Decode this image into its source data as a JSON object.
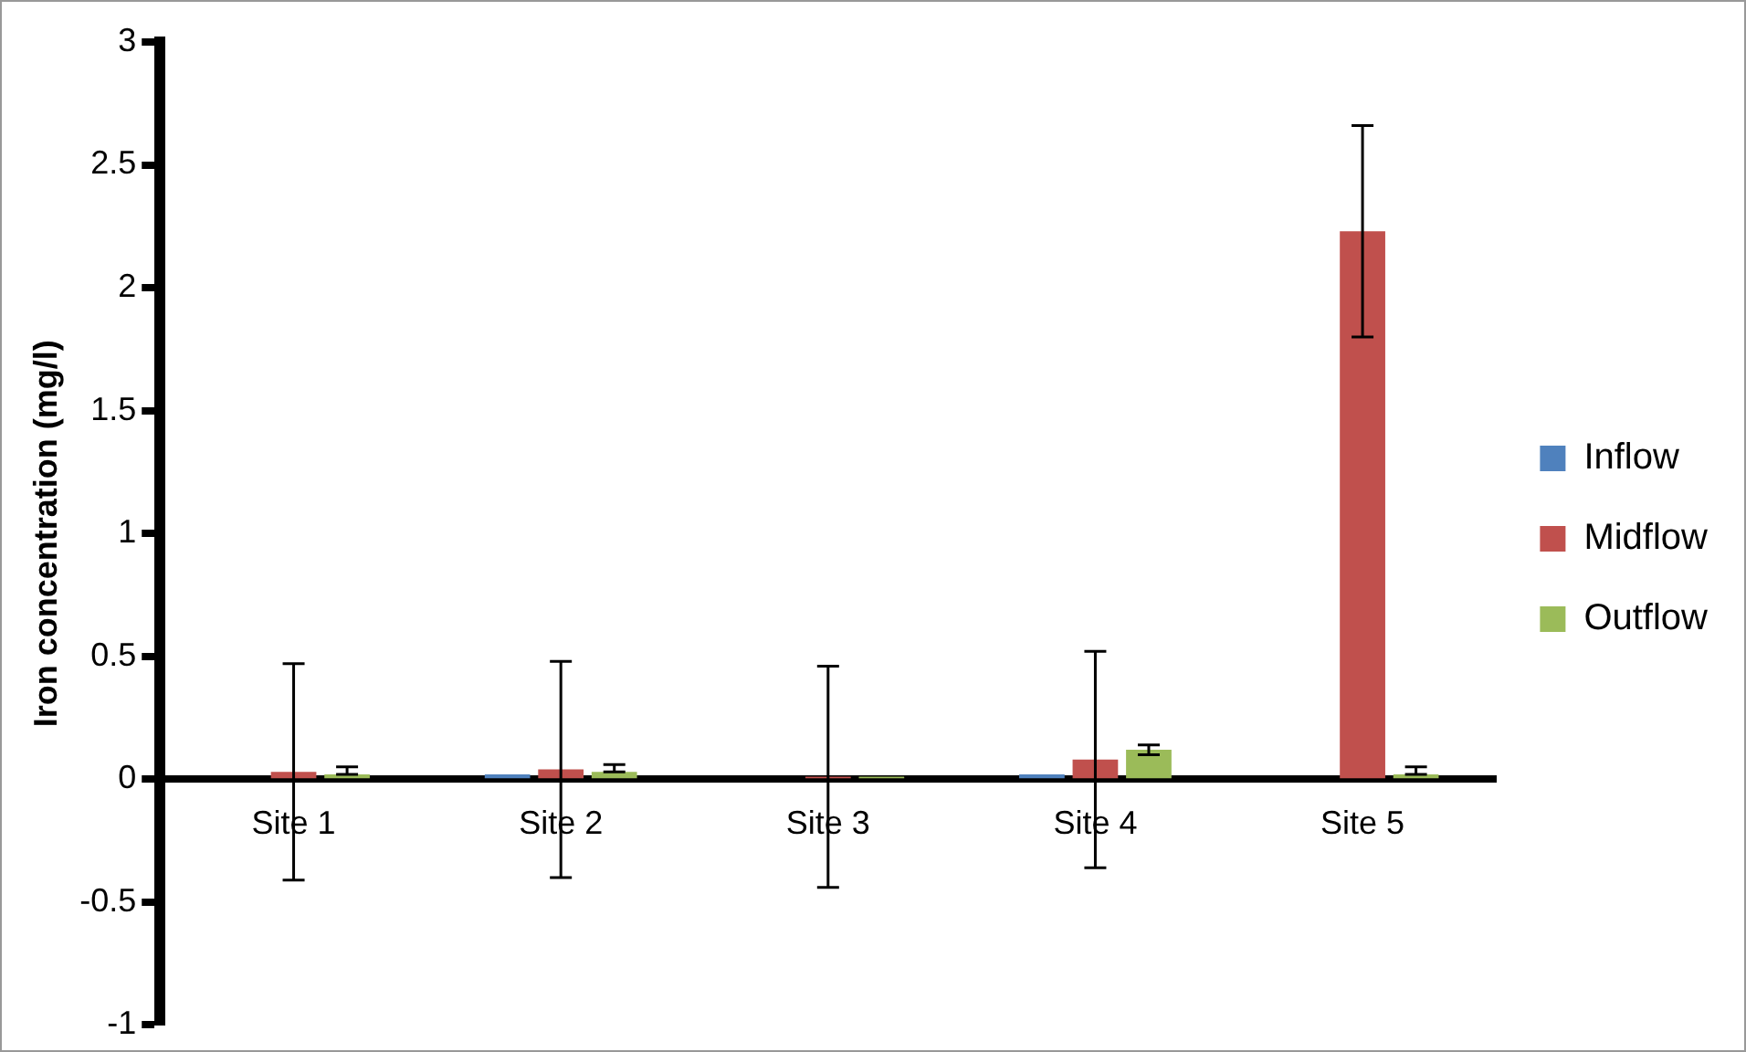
{
  "chart_data": {
    "type": "bar",
    "ylabel": "Iron concentration (mg/l)",
    "categories": [
      "Site 1",
      "Site 2",
      "Site 3",
      "Site 4",
      "Site 5"
    ],
    "series": [
      {
        "name": "Inflow",
        "color": "#4f81bd",
        "values": [
          null,
          0.02,
          null,
          0.02,
          null
        ]
      },
      {
        "name": "Midflow",
        "color": "#c0504d",
        "values": [
          0.03,
          0.04,
          0.01,
          0.08,
          2.23
        ],
        "errors": [
          0.44,
          0.44,
          0.45,
          0.44,
          0.43
        ]
      },
      {
        "name": "Outflow",
        "color": "#9bbb59",
        "values": [
          0.02,
          0.03,
          0.01,
          0.12,
          0.02
        ],
        "errors": [
          [
            0.02,
            0.05
          ],
          [
            0.03,
            0.06
          ],
          null,
          0.02,
          [
            0.02,
            0.05
          ]
        ]
      }
    ],
    "ylim": [
      -1,
      3
    ],
    "yticks": [
      -1,
      -0.5,
      0,
      0.5,
      1,
      1.5,
      2,
      2.5,
      3
    ],
    "grid": false,
    "legend": "right"
  }
}
